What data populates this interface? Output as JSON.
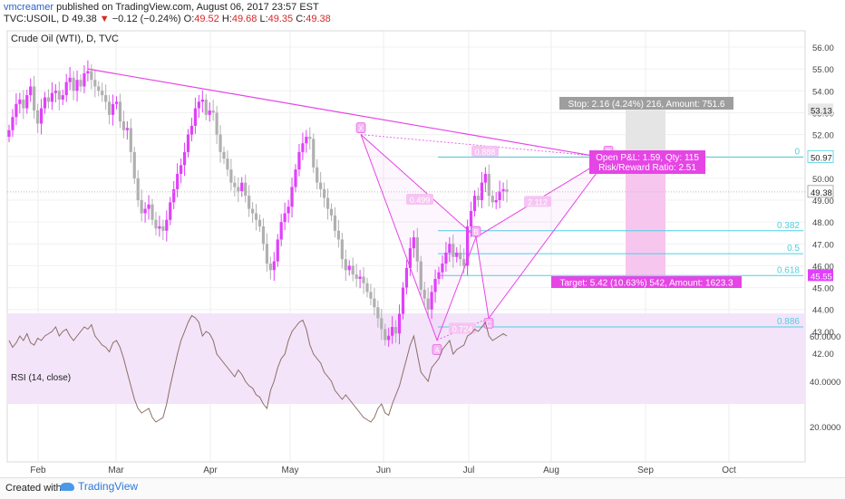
{
  "header": {
    "author": "vmcreamer",
    "published": "published on TradingView.com, August 06, 2017 23:57 EST",
    "symbol": "TVC:USOIL, D",
    "last": "49.38",
    "change": "−0.12 (−0.24%)",
    "ohlc": {
      "o_label": "O:",
      "o": "49.52",
      "h_label": "H:",
      "h": "49.68",
      "l_label": "L:",
      "l": "49.35",
      "c_label": "C:",
      "c": "49.38"
    }
  },
  "legend": {
    "main": "Crude Oil (WTI), D, TVC",
    "rsi": "RSI (14, close)"
  },
  "footer": {
    "created_with": "Created with",
    "brand": "TradingView"
  },
  "colors": {
    "up": "#e040fb",
    "down": "#b0b0b0",
    "pattern": "#e645e6",
    "fib": "#4dd0e1",
    "rsi_band": "#f3e4fa",
    "rsi_line": "#8d6e63",
    "stop_zone": "#e5e5e5",
    "target_zone": "#f7c6ee"
  },
  "chart_data": [
    {
      "type": "candlestick",
      "title": "Crude Oil (WTI), D, TVC",
      "ylim": [
        41.5,
        56.5
      ],
      "y_ticks": [
        "56.00",
        "55.00",
        "54.00",
        "53.00",
        "52.00",
        "51.00",
        "50.00",
        "49.00",
        "48.00",
        "47.00",
        "46.00",
        "45.00",
        "44.00",
        "43.00",
        "42.00"
      ],
      "x_ticks": [
        "Feb",
        "Mar",
        "Apr",
        "May",
        "Jun",
        "Jul",
        "Aug",
        "Sep",
        "Oct"
      ],
      "price_tags": [
        {
          "value": 53.13,
          "label": "53.13"
        },
        {
          "value": 50.97,
          "label": "50.97"
        },
        {
          "value": 49.38,
          "label": "49.38"
        },
        {
          "value": 45.55,
          "label": "45.55"
        }
      ],
      "close_series": [
        52.2,
        52.8,
        53.4,
        53.6,
        53.2,
        53.8,
        54.2,
        53.1,
        52.5,
        53.2,
        53.7,
        53.5,
        53.9,
        54.0,
        53.6,
        53.8,
        54.4,
        54.6,
        54.0,
        54.5,
        54.2,
        54.8,
        54.9,
        54.5,
        54.2,
        54.0,
        53.8,
        53.5,
        52.9,
        53.4,
        53.5,
        52.6,
        52.2,
        52.3,
        51.2,
        50.0,
        49.0,
        48.4,
        48.6,
        48.8,
        48.1,
        47.7,
        47.8,
        47.6,
        48.1,
        48.9,
        49.5,
        50.2,
        50.6,
        51.2,
        52.0,
        52.4,
        53.2,
        53.5,
        53.6,
        52.9,
        53.1,
        53.0,
        52.0,
        51.2,
        50.9,
        50.4,
        49.8,
        49.6,
        49.4,
        49.8,
        49.2,
        48.6,
        48.4,
        48.1,
        47.8,
        47.0,
        46.1,
        45.8,
        46.2,
        47.2,
        48.0,
        48.4,
        48.7,
        49.6,
        50.4,
        51.2,
        51.6,
        51.9,
        51.8,
        50.5,
        49.8,
        49.5,
        49.1,
        48.6,
        48.3,
        47.6,
        47.2,
        46.3,
        45.8,
        46.0,
        45.6,
        45.4,
        45.5,
        45.2,
        44.8,
        44.5,
        44.1,
        43.6,
        43.1,
        42.6,
        42.8,
        43.2,
        42.9,
        43.8,
        45.0,
        45.9,
        46.8,
        47.3,
        46.2,
        44.9,
        44.5,
        44.0,
        44.8,
        45.4,
        45.7,
        46.1,
        46.6,
        47.0,
        46.4,
        46.6,
        46.3,
        46.0,
        47.8,
        48.5,
        49.2,
        49.0,
        49.8,
        50.2,
        49.2,
        48.9,
        49.0,
        49.4,
        49.5,
        49.38
      ],
      "patterns": {
        "harmonic_points": [
          {
            "label": "X",
            "value": 52.0
          },
          {
            "label": "A",
            "value": 42.6
          },
          {
            "label": "B",
            "value": 47.3
          },
          {
            "label": "C",
            "value": 43.6
          },
          {
            "label": "D",
            "value": 50.97
          }
        ],
        "ratios": [
          "0.888",
          "0.499",
          "0.724",
          "2.112"
        ],
        "fib_levels": [
          {
            "label": "0",
            "value": 50.97
          },
          {
            "label": "0.382",
            "value": 47.6
          },
          {
            "label": "0.5",
            "value": 46.55
          },
          {
            "label": "0.618",
            "value": 45.55
          },
          {
            "label": "0.886",
            "value": 43.2
          }
        ],
        "trendline": [
          {
            "date": "Feb 23",
            "value": 55.0
          },
          {
            "date": "Aug 22",
            "value": 50.9
          }
        ]
      },
      "position": {
        "stop_label": "Stop: 2.16 (4.24%) 216, Amount: 751.6",
        "open_label": "Open P&L: 1.59, Qty: 115",
        "rr_label": "Risk/Reward Ratio: 2.51",
        "target_label": "Target: 5.42 (10.63%) 542, Amount: 1623.3",
        "stop_price": 53.13,
        "entry_price": 50.97,
        "target_price": 45.55
      }
    },
    {
      "type": "line",
      "title": "RSI (14, close)",
      "ylim": [
        15,
        75
      ],
      "y_ticks": [
        "60.0000",
        "40.0000",
        "20.0000"
      ],
      "band": [
        30,
        70
      ],
      "values": [
        58,
        55,
        57,
        60,
        58,
        61,
        57,
        56,
        59,
        58,
        60,
        61,
        62,
        64,
        60,
        62,
        63,
        60,
        58,
        60,
        62,
        64,
        63,
        65,
        60,
        58,
        56,
        55,
        53,
        57,
        58,
        55,
        50,
        44,
        38,
        32,
        28,
        26,
        27,
        28,
        24,
        22,
        23,
        24,
        30,
        38,
        45,
        52,
        58,
        62,
        66,
        69,
        68,
        66,
        60,
        62,
        61,
        58,
        52,
        50,
        48,
        46,
        44,
        42,
        45,
        43,
        40,
        38,
        37,
        34,
        33,
        30,
        28,
        36,
        40,
        46,
        50,
        52,
        58,
        62,
        64,
        66,
        67,
        63,
        56,
        52,
        50,
        48,
        44,
        42,
        40,
        36,
        34,
        32,
        34,
        32,
        30,
        28,
        26,
        24,
        23,
        22,
        24,
        28,
        30,
        26,
        25,
        30,
        34,
        38,
        44,
        50,
        56,
        60,
        52,
        44,
        42,
        40,
        46,
        48,
        50,
        54,
        56,
        58,
        52,
        54,
        55,
        56,
        60,
        61,
        63,
        62,
        64,
        66,
        60,
        58,
        59,
        60,
        61,
        60
      ]
    }
  ]
}
